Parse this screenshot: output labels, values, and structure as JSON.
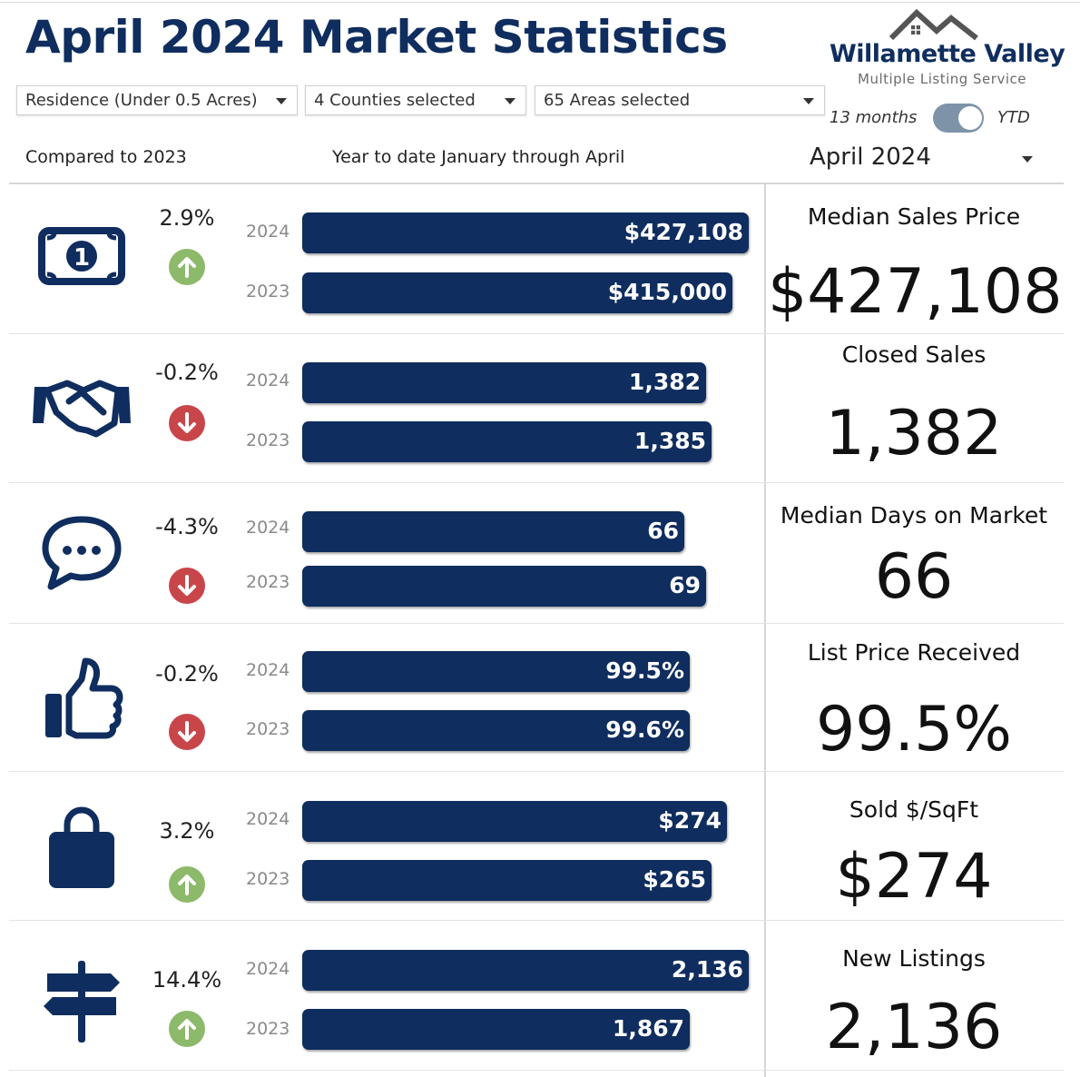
{
  "page_title": "April 2024 Market Statistics",
  "logo": {
    "name": "Willamette Valley",
    "subtitle": "Multiple Listing Service"
  },
  "filters": {
    "property_type": "Residence (Under 0.5 Acres)",
    "counties": "4 Counties selected",
    "areas": "65 Areas selected"
  },
  "toggle": {
    "left_label": "13 months",
    "right_label": "YTD",
    "selected": "YTD"
  },
  "compared_label": "Compared to 2023",
  "period_label": "Year to date January through April",
  "month_selector": "April 2024",
  "colors": {
    "bar": "#0f2d5e",
    "title": "#0f2d5e",
    "up": "#8db96a",
    "down": "#c8464a"
  },
  "metrics": [
    {
      "icon": "money-bill-icon",
      "change": "2.9%",
      "direction": "up",
      "year_a": "2024",
      "value_a": "$427,108",
      "num_a": 427108,
      "fill_a": 0.84,
      "year_b": "2023",
      "value_b": "$415,000",
      "num_b": 415000,
      "fill_b": 0.81,
      "label": "Median Sales Price",
      "kpi": "$427,108"
    },
    {
      "icon": "handshake-icon",
      "change": "-0.2%",
      "direction": "down",
      "year_a": "2024",
      "value_a": "1,382",
      "num_a": 1382,
      "fill_a": 0.76,
      "year_b": "2023",
      "value_b": "1,385",
      "num_b": 1385,
      "fill_b": 0.77,
      "label": "Closed Sales",
      "kpi": "1,382"
    },
    {
      "icon": "chat-bubble-icon",
      "change": "-4.3%",
      "direction": "down",
      "year_a": "2024",
      "value_a": "66",
      "num_a": 66,
      "fill_a": 0.72,
      "year_b": "2023",
      "value_b": "69",
      "num_b": 69,
      "fill_b": 0.76,
      "label": "Median Days on Market",
      "kpi": "66"
    },
    {
      "icon": "thumbs-up-icon",
      "change": "-0.2%",
      "direction": "down",
      "year_a": "2024",
      "value_a": "99.5%",
      "num_a": 99.5,
      "fill_a": 0.73,
      "year_b": "2023",
      "value_b": "99.6%",
      "num_b": 99.6,
      "fill_b": 0.73,
      "label": "List Price Received",
      "kpi": "99.5%"
    },
    {
      "icon": "shopping-bag-icon",
      "change": "3.2%",
      "direction": "up",
      "year_a": "2024",
      "value_a": "$274",
      "num_a": 274,
      "fill_a": 0.8,
      "year_b": "2023",
      "value_b": "$265",
      "num_b": 265,
      "fill_b": 0.77,
      "label": "Sold $/SqFt",
      "kpi": "$274"
    },
    {
      "icon": "signpost-icon",
      "change": "14.4%",
      "direction": "up",
      "year_a": "2024",
      "value_a": "2,136",
      "num_a": 2136,
      "fill_a": 0.84,
      "year_b": "2023",
      "value_b": "1,867",
      "num_b": 1867,
      "fill_b": 0.73,
      "label": "New Listings",
      "kpi": "2,136"
    }
  ]
}
